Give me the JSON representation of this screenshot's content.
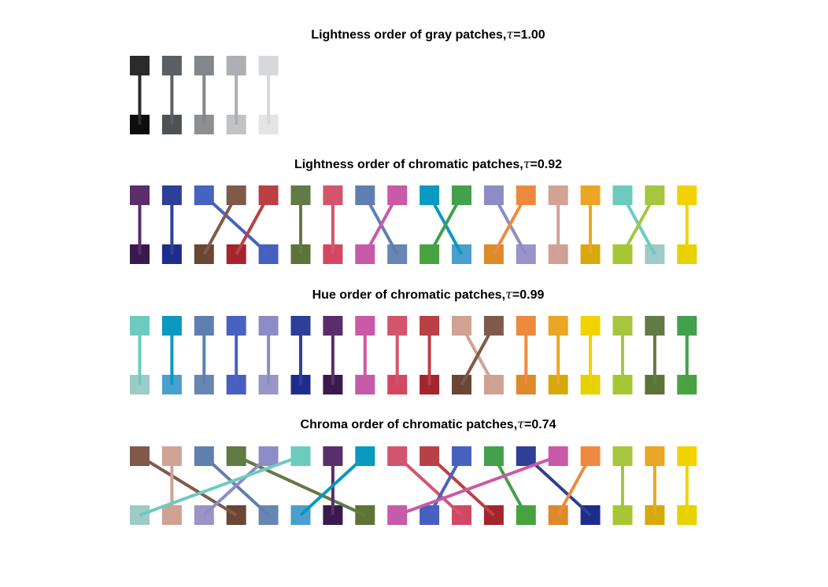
{
  "panels": [
    {
      "id": "gray",
      "title_prefix": "Lightness order of gray patches,",
      "tau_symbol": "τ",
      "tau_text": "=1.00",
      "tau": 1.0,
      "top": [
        "#2b2b2b",
        "#5b5e62",
        "#83868a",
        "#adafb4",
        "#d6d8db"
      ],
      "bottom": [
        "#0d0d0d",
        "#4e5155",
        "#8e8f91",
        "#c2c3c5",
        "#e3e4e6"
      ],
      "links": [
        [
          0,
          0
        ],
        [
          1,
          1
        ],
        [
          2,
          2
        ],
        [
          3,
          3
        ],
        [
          4,
          4
        ]
      ]
    },
    {
      "id": "lightness",
      "title_prefix": "Lightness order of chromatic patches,",
      "tau_symbol": "τ",
      "tau_text": "=0.92",
      "tau": 0.92,
      "top": [
        "#5a2d6b",
        "#2e3f97",
        "#4862c0",
        "#7f5a4b",
        "#b94045",
        "#627a46",
        "#d3556d",
        "#5f7fb0",
        "#c95aa8",
        "#0a99c0",
        "#43a04c",
        "#8e8cc6",
        "#ee8a3f",
        "#d0a394",
        "#eaa624",
        "#6ccbbe",
        "#a5c63e",
        "#f2d200"
      ],
      "bottom": [
        "#3a1a4d",
        "#1e2d8c",
        "#6a4634",
        "#a3262e",
        "#4660bf",
        "#5d7437",
        "#d24862",
        "#c45caa",
        "#6786b4",
        "#48a33f",
        "#4a9fce",
        "#dc8a2a",
        "#9a95c7",
        "#d0a193",
        "#d6aa0c",
        "#a8c632",
        "#9ecbc7",
        "#e6d200"
      ],
      "links": [
        [
          0,
          0
        ],
        [
          1,
          1
        ],
        [
          2,
          4
        ],
        [
          3,
          2
        ],
        [
          4,
          3
        ],
        [
          5,
          5
        ],
        [
          6,
          6
        ],
        [
          7,
          8
        ],
        [
          8,
          7
        ],
        [
          9,
          10
        ],
        [
          10,
          9
        ],
        [
          11,
          12
        ],
        [
          12,
          11
        ],
        [
          13,
          13
        ],
        [
          14,
          14
        ],
        [
          15,
          16
        ],
        [
          16,
          15
        ],
        [
          17,
          17
        ]
      ]
    },
    {
      "id": "hue",
      "title_prefix": "Hue order of chromatic patches,",
      "tau_symbol": "τ",
      "tau_text": "=0.99",
      "tau": 0.99,
      "top": [
        "#6ccbbe",
        "#0a99c0",
        "#5f7fb0",
        "#4862c0",
        "#8e8cc6",
        "#2e3f97",
        "#5a2d6b",
        "#c95aa8",
        "#d3556d",
        "#b94045",
        "#d0a394",
        "#7f5a4b",
        "#ee8a3f",
        "#eaa624",
        "#f2d200",
        "#a5c63e",
        "#627a46",
        "#43a04c"
      ],
      "bottom": [
        "#9ecbc7",
        "#4a9fce",
        "#6786b4",
        "#4660bf",
        "#9a95c7",
        "#1e2d8c",
        "#3a1a4d",
        "#c45caa",
        "#d24862",
        "#a3262e",
        "#6a4634",
        "#d0a193",
        "#dc8a2a",
        "#d6aa0c",
        "#e6d200",
        "#a8c632",
        "#5d7437",
        "#48a33f"
      ],
      "links": [
        [
          0,
          0
        ],
        [
          1,
          1
        ],
        [
          2,
          2
        ],
        [
          3,
          3
        ],
        [
          4,
          4
        ],
        [
          5,
          5
        ],
        [
          6,
          6
        ],
        [
          7,
          7
        ],
        [
          8,
          8
        ],
        [
          9,
          9
        ],
        [
          10,
          11
        ],
        [
          11,
          10
        ],
        [
          12,
          12
        ],
        [
          13,
          13
        ],
        [
          14,
          14
        ],
        [
          15,
          15
        ],
        [
          16,
          16
        ],
        [
          17,
          17
        ]
      ]
    },
    {
      "id": "chroma",
      "title_prefix": "Chroma order of chromatic patches,",
      "tau_symbol": "τ",
      "tau_text": "=0.74",
      "tau": 0.74,
      "top": [
        "#7f5a4b",
        "#d0a394",
        "#5f7fb0",
        "#627a46",
        "#8e8cc6",
        "#6ccbbe",
        "#5a2d6b",
        "#0a99c0",
        "#d3556d",
        "#b94045",
        "#4862c0",
        "#43a04c",
        "#2e3f97",
        "#c95aa8",
        "#ee8a3f",
        "#a5c63e",
        "#eaa624",
        "#f2d200"
      ],
      "bottom": [
        "#9ecbc7",
        "#d0a193",
        "#9a95c7",
        "#6a4634",
        "#6786b4",
        "#4a9fce",
        "#3a1a4d",
        "#5d7437",
        "#c45caa",
        "#4660bf",
        "#d24862",
        "#a3262e",
        "#48a33f",
        "#dc8a2a",
        "#1e2d8c",
        "#a8c632",
        "#d6aa0c",
        "#e6d200"
      ],
      "links": [
        [
          0,
          3
        ],
        [
          1,
          1
        ],
        [
          2,
          4
        ],
        [
          3,
          7
        ],
        [
          4,
          2
        ],
        [
          5,
          0
        ],
        [
          6,
          6
        ],
        [
          7,
          5
        ],
        [
          8,
          10
        ],
        [
          9,
          11
        ],
        [
          10,
          9
        ],
        [
          11,
          12
        ],
        [
          12,
          14
        ],
        [
          13,
          8
        ],
        [
          14,
          13
        ],
        [
          15,
          15
        ],
        [
          16,
          16
        ],
        [
          17,
          17
        ]
      ]
    }
  ]
}
